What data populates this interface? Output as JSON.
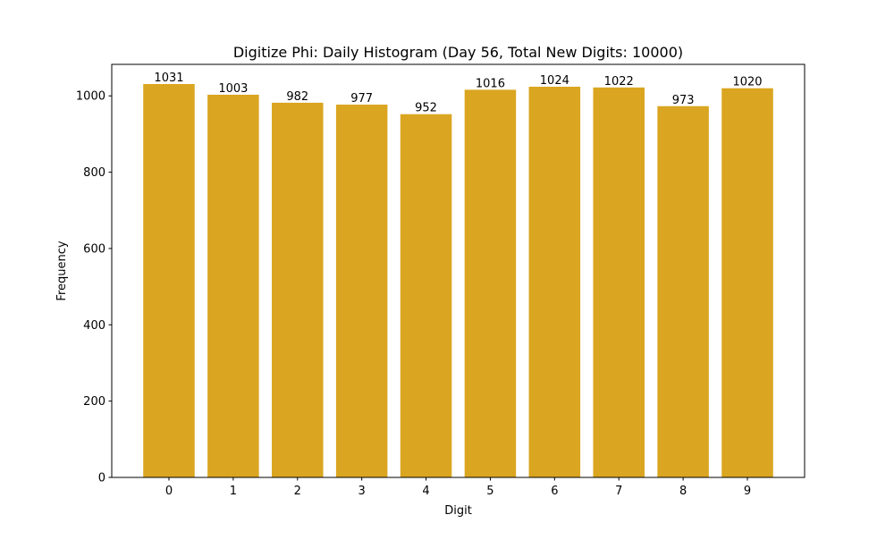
{
  "chart_data": {
    "type": "bar",
    "title": "Digitize Phi: Daily Histogram (Day 56, Total New Digits: 10000)",
    "xlabel": "Digit",
    "ylabel": "Frequency",
    "categories": [
      "0",
      "1",
      "2",
      "3",
      "4",
      "5",
      "6",
      "7",
      "8",
      "9"
    ],
    "values": [
      1031,
      1003,
      982,
      977,
      952,
      1016,
      1024,
      1022,
      973,
      1020
    ],
    "data_labels": [
      "1031",
      "1003",
      "982",
      "977",
      "952",
      "1016",
      "1024",
      "1022",
      "973",
      "1020"
    ],
    "ylim": [
      0,
      1082.55
    ],
    "yticks": [
      0,
      200,
      400,
      600,
      800,
      1000
    ],
    "grid": false,
    "legend": null,
    "bar_color": "#DAA520"
  }
}
